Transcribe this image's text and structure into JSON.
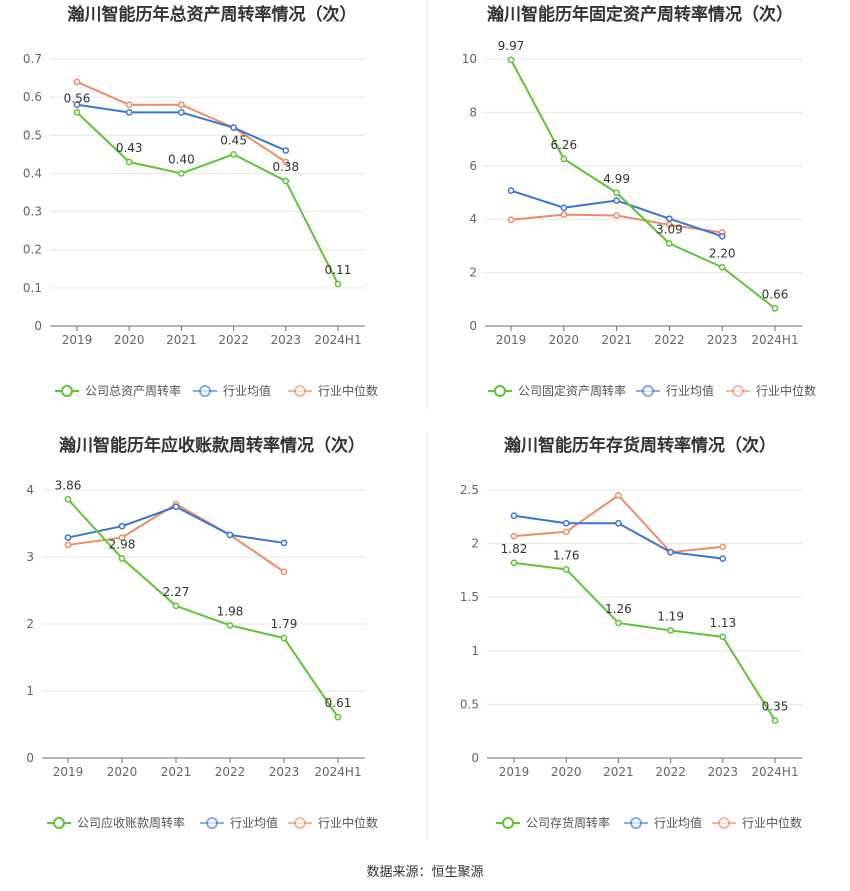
{
  "source": "数据来源：恒生聚源",
  "colors": {
    "company": "#5cc632",
    "avg": "#3b74d8",
    "median": "#f08c62"
  },
  "chart_data": [
    {
      "type": "line",
      "title": "瀚川智能历年总资产周转率情况（次）",
      "categories": [
        "2019",
        "2020",
        "2021",
        "2022",
        "2023",
        "2024H1"
      ],
      "ylim": [
        0,
        0.7
      ],
      "yticks": [
        "0",
        "0.1",
        "0.2",
        "0.3",
        "0.4",
        "0.5",
        "0.6",
        "0.7"
      ],
      "ytick_values": [
        0,
        0.1,
        0.2,
        0.3,
        0.4,
        0.5,
        0.6,
        0.7
      ],
      "grid": true,
      "legend_position": "bottom-center",
      "series": [
        {
          "name": "公司总资产周转率",
          "key": "company",
          "values": [
            0.56,
            0.43,
            0.4,
            0.45,
            0.38,
            0.11
          ],
          "labels": [
            "0.56",
            "0.43",
            "0.40",
            "0.45",
            "0.38",
            "0.11"
          ]
        },
        {
          "name": "行业均值",
          "key": "avg",
          "values": [
            0.58,
            0.56,
            0.56,
            0.52,
            0.46,
            null
          ]
        },
        {
          "name": "行业中位数",
          "key": "median",
          "values": [
            0.64,
            0.58,
            0.58,
            0.52,
            0.43,
            null
          ]
        }
      ]
    },
    {
      "type": "line",
      "title": "瀚川智能历年固定资产周转率情况（次）",
      "categories": [
        "2019",
        "2020",
        "2021",
        "2022",
        "2023",
        "2024H1"
      ],
      "ylim": [
        0,
        10
      ],
      "yticks": [
        "0",
        "2",
        "4",
        "6",
        "8",
        "10"
      ],
      "ytick_values": [
        0,
        2,
        4,
        6,
        8,
        10
      ],
      "grid": true,
      "legend_position": "bottom-center",
      "series": [
        {
          "name": "公司固定资产周转率",
          "key": "company",
          "values": [
            9.97,
            6.26,
            4.99,
            3.09,
            2.2,
            0.66
          ],
          "labels": [
            "9.97",
            "6.26",
            "4.99",
            "3.09",
            "2.20",
            "0.66"
          ]
        },
        {
          "name": "行业均值",
          "key": "avg",
          "values": [
            5.07,
            4.43,
            4.7,
            4.02,
            3.36,
            null
          ]
        },
        {
          "name": "行业中位数",
          "key": "median",
          "values": [
            3.98,
            4.17,
            4.14,
            3.79,
            3.5,
            null
          ]
        }
      ]
    },
    {
      "type": "line",
      "title": "瀚川智能历年应收账款周转率情况（次）",
      "categories": [
        "2019",
        "2020",
        "2021",
        "2022",
        "2023",
        "2024H1"
      ],
      "ylim": [
        0,
        4
      ],
      "yticks": [
        "0",
        "1",
        "2",
        "3",
        "4"
      ],
      "ytick_values": [
        0,
        1,
        2,
        3,
        4
      ],
      "grid": true,
      "legend_position": "bottom-center",
      "series": [
        {
          "name": "公司应收账款周转率",
          "key": "company",
          "values": [
            3.86,
            2.98,
            2.27,
            1.98,
            1.79,
            0.61
          ],
          "labels": [
            "3.86",
            "2.98",
            "2.27",
            "1.98",
            "1.79",
            "0.61"
          ]
        },
        {
          "name": "行业均值",
          "key": "avg",
          "values": [
            3.29,
            3.46,
            3.75,
            3.33,
            3.21,
            null
          ]
        },
        {
          "name": "行业中位数",
          "key": "median",
          "values": [
            3.18,
            3.29,
            3.79,
            3.33,
            2.78,
            null
          ]
        }
      ]
    },
    {
      "type": "line",
      "title": "瀚川智能历年存货周转率情况（次）",
      "categories": [
        "2019",
        "2020",
        "2021",
        "2022",
        "2023",
        "2024H1"
      ],
      "ylim": [
        0,
        2.5
      ],
      "yticks": [
        "0",
        "0.5",
        "1",
        "1.5",
        "2",
        "2.5"
      ],
      "ytick_values": [
        0,
        0.5,
        1,
        1.5,
        2,
        2.5
      ],
      "grid": true,
      "legend_position": "bottom-center",
      "series": [
        {
          "name": "公司存货周转率",
          "key": "company",
          "values": [
            1.82,
            1.76,
            1.26,
            1.19,
            1.13,
            0.35
          ],
          "labels": [
            "1.82",
            "1.76",
            "1.26",
            "1.19",
            "1.13",
            "0.35"
          ]
        },
        {
          "name": "行业均值",
          "key": "avg",
          "values": [
            2.26,
            2.19,
            2.19,
            1.92,
            1.86,
            null
          ]
        },
        {
          "name": "行业中位数",
          "key": "median",
          "values": [
            2.07,
            2.11,
            2.45,
            1.92,
            1.97,
            null
          ]
        }
      ]
    }
  ]
}
